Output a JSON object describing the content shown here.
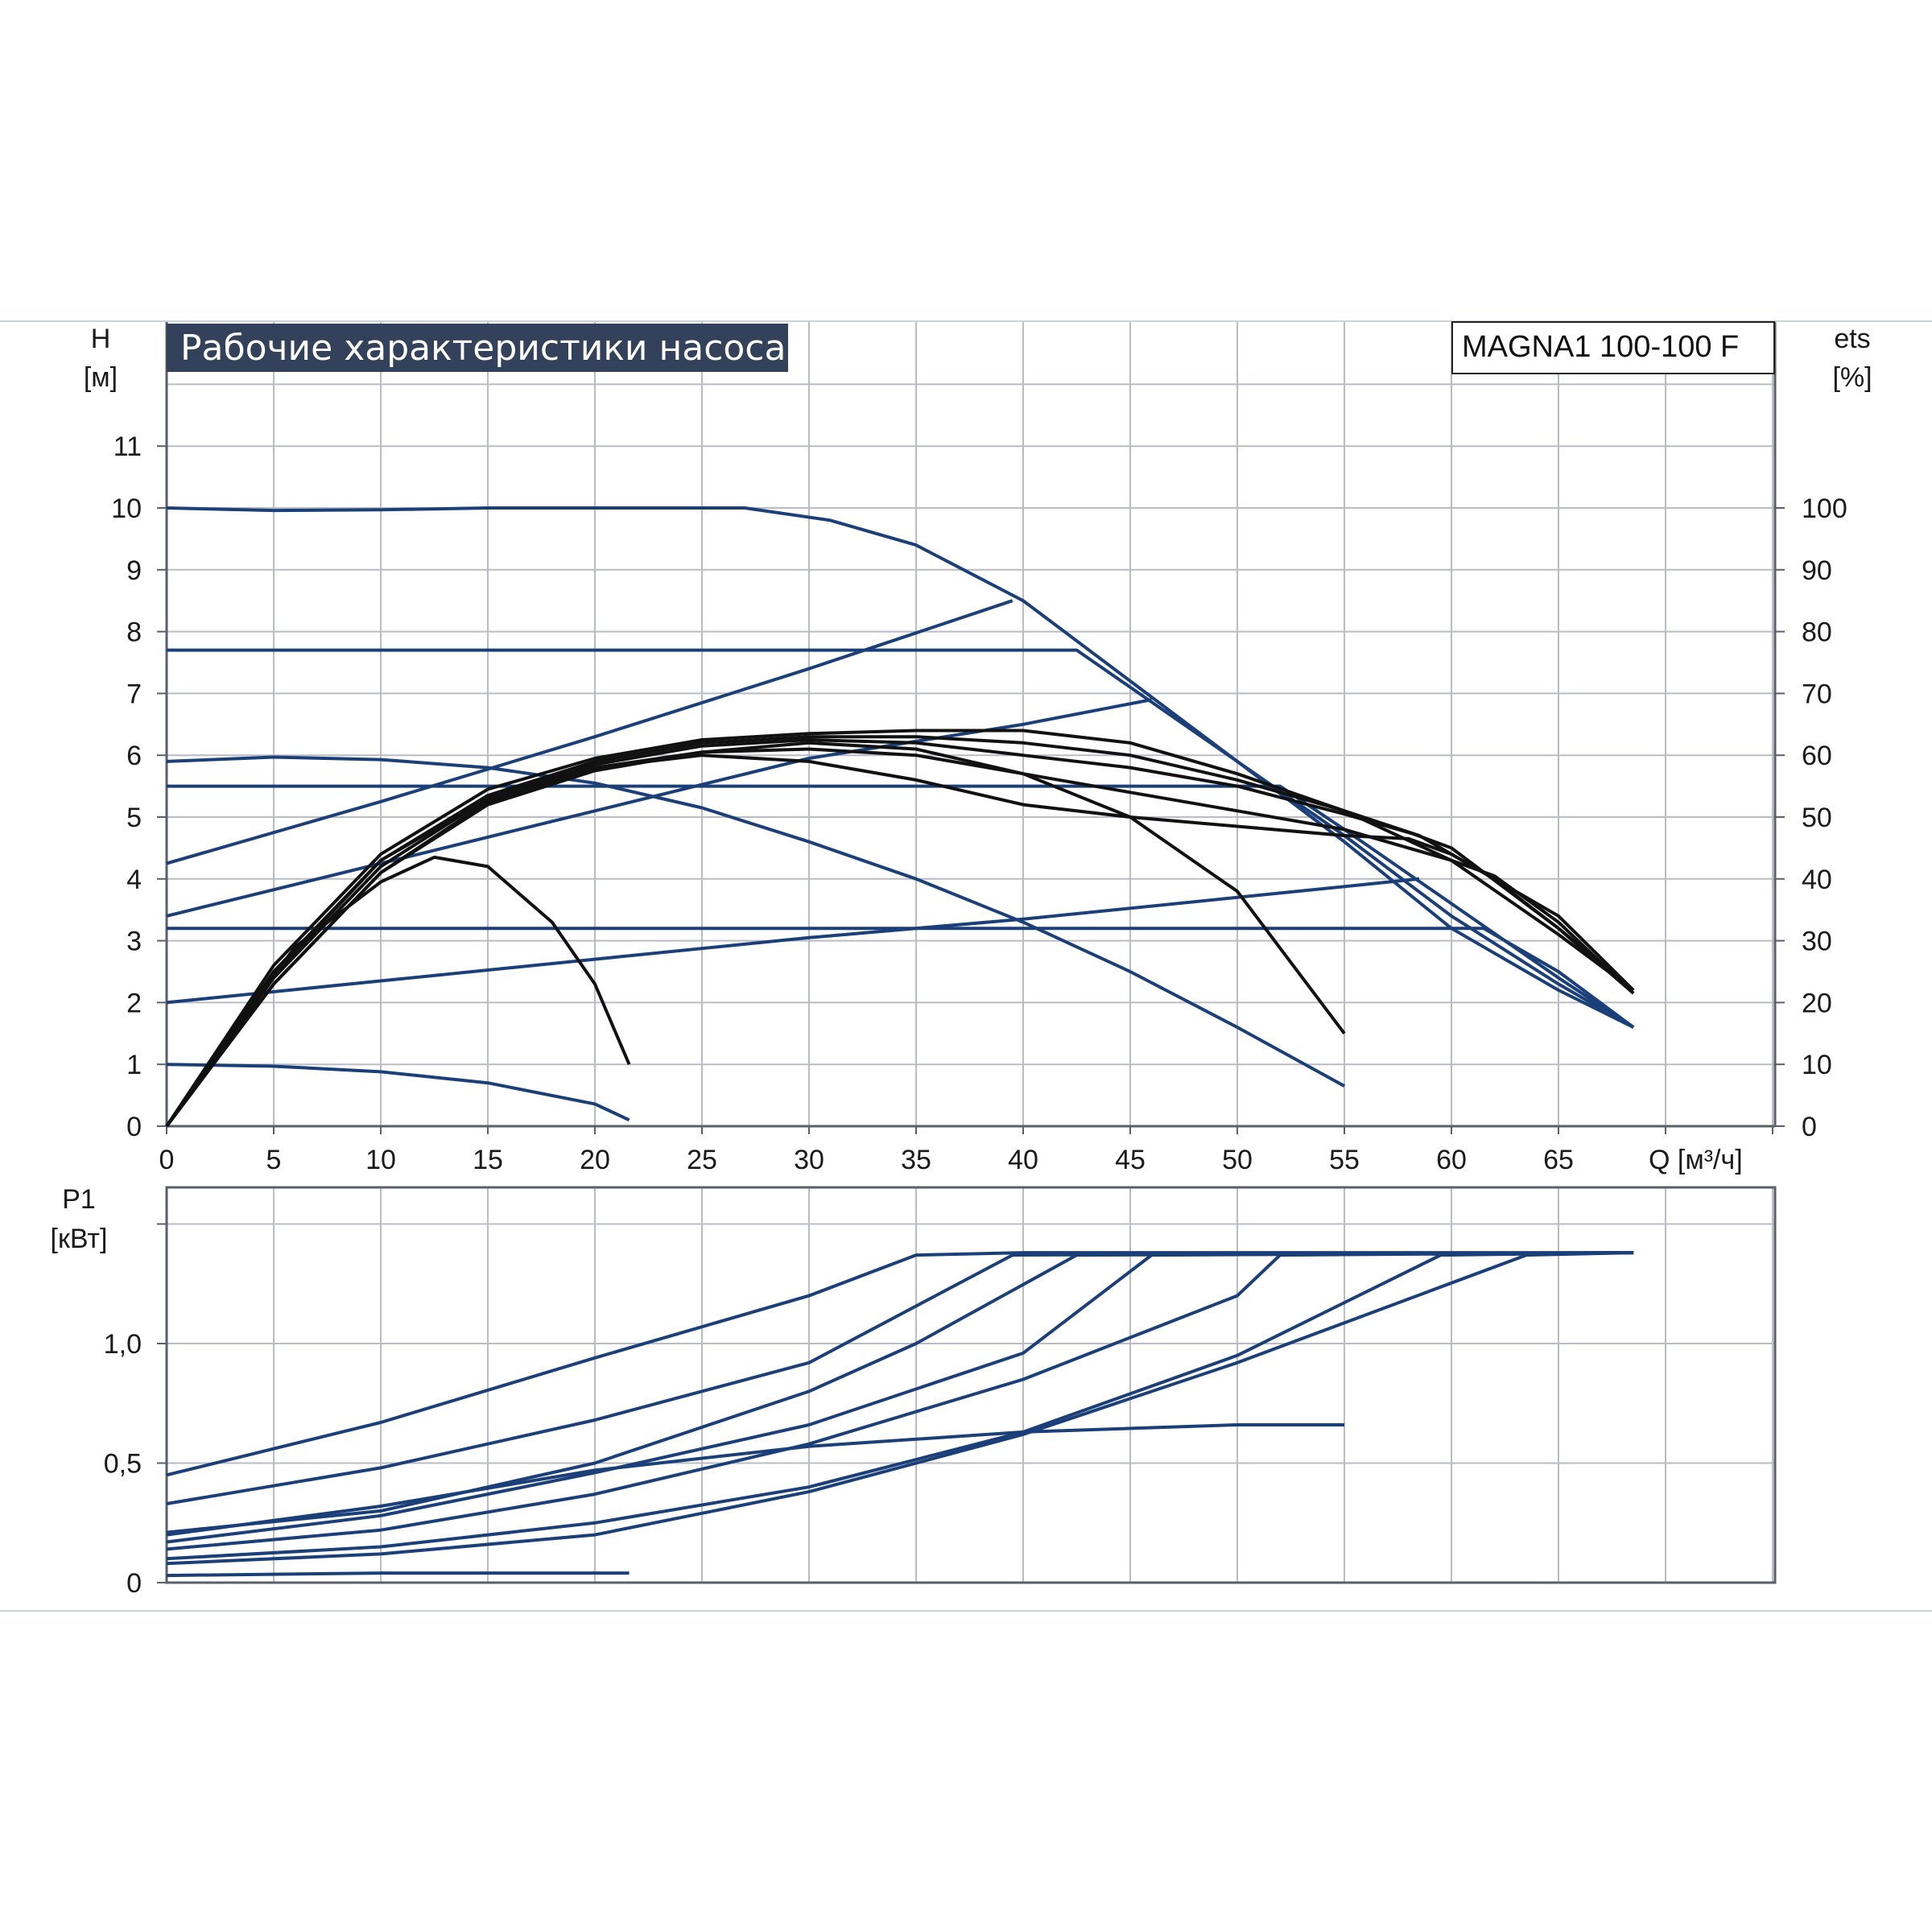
{
  "title": "Рабочие характеристики насоса",
  "model": "MAGNA1 100-100 F",
  "colors": {
    "curve_blue": "#1b3f78",
    "curve_black": "#111111",
    "grid": "#b9bcc4",
    "title_bg": "#33415a",
    "frame": "#5a5f6a",
    "outer_line": "#cfd2d8"
  },
  "chart_data": [
    {
      "type": "line",
      "name": "head",
      "ylabel_symbol": "H",
      "ylabel_unit": "[м]",
      "y2label_symbol": "ets",
      "y2label_unit": "[%]",
      "xlabel": "Q [м³/ч]",
      "xlim": [
        0,
        75
      ],
      "ylim": [
        0,
        12
      ],
      "y2lim": [
        0,
        120
      ],
      "grid": true,
      "x_ticks": [
        "0",
        "5",
        "10",
        "15",
        "20",
        "25",
        "30",
        "35",
        "40",
        "45",
        "50",
        "55",
        "60",
        "65"
      ],
      "y_ticks": [
        "0",
        "1",
        "2",
        "3",
        "4",
        "5",
        "6",
        "7",
        "8",
        "9",
        "10",
        "11"
      ],
      "y2_ticks": [
        "0",
        "10",
        "20",
        "30",
        "40",
        "50",
        "60",
        "70",
        "80",
        "90",
        "100"
      ],
      "head_curves": [
        [
          [
            0,
            10
          ],
          [
            5,
            9.96
          ],
          [
            10,
            9.97
          ],
          [
            15,
            10
          ],
          [
            20,
            10
          ],
          [
            27,
            10
          ],
          [
            31,
            9.8
          ],
          [
            35,
            9.4
          ],
          [
            40,
            8.5
          ],
          [
            45,
            7.2
          ],
          [
            50,
            5.9
          ],
          [
            55,
            4.6
          ],
          [
            60,
            3.2
          ],
          [
            65,
            2.2
          ],
          [
            68.5,
            1.6
          ]
        ],
        [
          [
            0,
            7.7
          ],
          [
            42.5,
            7.7
          ],
          [
            50,
            5.9
          ],
          [
            55,
            4.7
          ],
          [
            60,
            3.4
          ],
          [
            65,
            2.3
          ],
          [
            68.5,
            1.6
          ]
        ],
        [
          [
            0,
            5.5
          ],
          [
            52,
            5.5
          ],
          [
            55,
            4.8
          ],
          [
            60,
            3.6
          ],
          [
            65,
            2.4
          ],
          [
            68.5,
            1.6
          ]
        ],
        [
          [
            0,
            3.2
          ],
          [
            61.5,
            3.2
          ],
          [
            65,
            2.5
          ],
          [
            68.5,
            1.6
          ]
        ],
        [
          [
            0,
            5.9
          ],
          [
            5,
            5.97
          ],
          [
            10,
            5.93
          ],
          [
            15,
            5.8
          ],
          [
            20,
            5.55
          ],
          [
            25,
            5.15
          ],
          [
            30,
            4.6
          ],
          [
            35,
            4
          ],
          [
            40,
            3.3
          ],
          [
            45,
            2.5
          ],
          [
            50,
            1.6
          ],
          [
            55,
            0.65
          ]
        ],
        [
          [
            0,
            1
          ],
          [
            5,
            0.97
          ],
          [
            10,
            0.88
          ],
          [
            15,
            0.7
          ],
          [
            20,
            0.36
          ],
          [
            21.6,
            0.1
          ]
        ]
      ],
      "system_curves": [
        [
          [
            0,
            4.25
          ],
          [
            10,
            5.25
          ],
          [
            20,
            6.3
          ],
          [
            30,
            7.4
          ],
          [
            39.5,
            8.5
          ]
        ],
        [
          [
            0,
            3.4
          ],
          [
            10,
            4.25
          ],
          [
            20,
            5.1
          ],
          [
            30,
            5.95
          ],
          [
            40,
            6.5
          ],
          [
            46,
            6.9
          ]
        ],
        [
          [
            0,
            2
          ],
          [
            10,
            2.35
          ],
          [
            20,
            2.7
          ],
          [
            30,
            3.05
          ],
          [
            40,
            3.35
          ],
          [
            50,
            3.7
          ],
          [
            58.5,
            4
          ]
        ]
      ],
      "eff_curves": [
        [
          [
            0,
            0
          ],
          [
            5,
            26
          ],
          [
            10,
            44
          ],
          [
            15,
            54.5
          ],
          [
            20,
            59.5
          ],
          [
            25,
            62.5
          ],
          [
            30,
            63.5
          ],
          [
            35,
            64
          ],
          [
            40,
            64
          ],
          [
            45,
            62
          ],
          [
            50,
            57
          ],
          [
            55,
            51
          ],
          [
            60,
            43
          ],
          [
            65,
            31
          ],
          [
            68.5,
            22
          ]
        ],
        [
          [
            0,
            0
          ],
          [
            5,
            25
          ],
          [
            10,
            43
          ],
          [
            15,
            53.5
          ],
          [
            20,
            59
          ],
          [
            25,
            62
          ],
          [
            30,
            63
          ],
          [
            35,
            63
          ],
          [
            40,
            62
          ],
          [
            45,
            60
          ],
          [
            50,
            56
          ],
          [
            55,
            51
          ],
          [
            58.5,
            47
          ],
          [
            62,
            40
          ],
          [
            65,
            32
          ],
          [
            68.5,
            22
          ]
        ],
        [
          [
            0,
            0
          ],
          [
            5,
            24
          ],
          [
            10,
            42
          ],
          [
            15,
            53
          ],
          [
            20,
            58.5
          ],
          [
            25,
            61.5
          ],
          [
            30,
            62.5
          ],
          [
            35,
            62
          ],
          [
            40,
            60
          ],
          [
            45,
            58
          ],
          [
            50,
            55
          ],
          [
            55,
            50.5
          ],
          [
            58.2,
            47.3
          ],
          [
            60,
            45
          ],
          [
            65,
            32
          ],
          [
            68.5,
            21.5
          ]
        ],
        [
          [
            0,
            0
          ],
          [
            5,
            23
          ],
          [
            10,
            41
          ],
          [
            15,
            52.5
          ],
          [
            20,
            58
          ],
          [
            25,
            60.5
          ],
          [
            30,
            61
          ],
          [
            35,
            60
          ],
          [
            40,
            57
          ],
          [
            45,
            54
          ],
          [
            50,
            51
          ],
          [
            55,
            48
          ],
          [
            60,
            43
          ],
          [
            62,
            40.5
          ],
          [
            65,
            33
          ],
          [
            68.5,
            21.5
          ]
        ],
        [
          [
            0,
            0
          ],
          [
            5,
            24.5
          ],
          [
            10,
            43
          ],
          [
            15,
            53
          ],
          [
            20,
            58
          ],
          [
            25,
            60
          ],
          [
            30,
            59
          ],
          [
            35,
            56
          ],
          [
            40,
            52
          ],
          [
            45,
            50
          ],
          [
            50,
            48.5
          ],
          [
            55,
            47
          ],
          [
            58,
            46.5
          ],
          [
            60,
            44
          ],
          [
            65,
            34
          ],
          [
            68.5,
            22
          ]
        ],
        [
          [
            0,
            0
          ],
          [
            5,
            23
          ],
          [
            10,
            41
          ],
          [
            15,
            52
          ],
          [
            20,
            57.5
          ],
          [
            25,
            60.5
          ],
          [
            30,
            62
          ],
          [
            35,
            61
          ],
          [
            40,
            57
          ],
          [
            45,
            50
          ],
          [
            50,
            38
          ],
          [
            55,
            15
          ]
        ],
        [
          [
            0,
            0
          ],
          [
            3,
            15
          ],
          [
            6,
            29
          ],
          [
            10,
            39.5
          ],
          [
            12.5,
            43.5
          ],
          [
            15,
            42
          ],
          [
            18,
            33
          ],
          [
            20,
            23
          ],
          [
            21.6,
            10
          ]
        ]
      ]
    },
    {
      "type": "line",
      "name": "power",
      "ylabel_symbol": "P1",
      "ylabel_unit": "[кВт]",
      "xlim": [
        0,
        75
      ],
      "ylim": [
        0,
        1.6
      ],
      "grid": true,
      "y_ticks": [
        "0",
        "0,5",
        "1,0"
      ],
      "y_tick_values": [
        0,
        0.5,
        1.0
      ],
      "curves": [
        [
          [
            0,
            0.45
          ],
          [
            10,
            0.67
          ],
          [
            20,
            0.94
          ],
          [
            30,
            1.2
          ],
          [
            35,
            1.37
          ],
          [
            40,
            1.38
          ],
          [
            50,
            1.38
          ],
          [
            60,
            1.38
          ],
          [
            68.5,
            1.38
          ]
        ],
        [
          [
            0,
            0.33
          ],
          [
            10,
            0.48
          ],
          [
            20,
            0.68
          ],
          [
            30,
            0.92
          ],
          [
            39.5,
            1.37
          ],
          [
            68.5,
            1.38
          ]
        ],
        [
          [
            0,
            0.21
          ],
          [
            10,
            0.3
          ],
          [
            20,
            0.5
          ],
          [
            30,
            0.8
          ],
          [
            35,
            1.0
          ],
          [
            42.5,
            1.37
          ],
          [
            68.5,
            1.38
          ]
        ],
        [
          [
            0,
            0.17
          ],
          [
            10,
            0.28
          ],
          [
            20,
            0.46
          ],
          [
            30,
            0.66
          ],
          [
            40,
            0.96
          ],
          [
            46,
            1.37
          ],
          [
            68.5,
            1.38
          ]
        ],
        [
          [
            0,
            0.14
          ],
          [
            10,
            0.22
          ],
          [
            20,
            0.37
          ],
          [
            30,
            0.58
          ],
          [
            40,
            0.85
          ],
          [
            50,
            1.2
          ],
          [
            52,
            1.37
          ],
          [
            68.5,
            1.38
          ]
        ],
        [
          [
            0,
            0.1
          ],
          [
            10,
            0.15
          ],
          [
            20,
            0.25
          ],
          [
            30,
            0.4
          ],
          [
            40,
            0.63
          ],
          [
            50,
            0.95
          ],
          [
            59.5,
            1.37
          ],
          [
            68.5,
            1.38
          ]
        ],
        [
          [
            0,
            0.08
          ],
          [
            10,
            0.12
          ],
          [
            20,
            0.2
          ],
          [
            30,
            0.38
          ],
          [
            40,
            0.62
          ],
          [
            50,
            0.92
          ],
          [
            63.5,
            1.37
          ],
          [
            68.5,
            1.38
          ]
        ],
        [
          [
            0,
            0.2
          ],
          [
            10,
            0.32
          ],
          [
            20,
            0.47
          ],
          [
            30,
            0.57
          ],
          [
            40,
            0.63
          ],
          [
            50,
            0.66
          ],
          [
            55,
            0.66
          ]
        ],
        [
          [
            0,
            0.03
          ],
          [
            10,
            0.04
          ],
          [
            20,
            0.04
          ],
          [
            21.6,
            0.04
          ]
        ]
      ]
    }
  ]
}
